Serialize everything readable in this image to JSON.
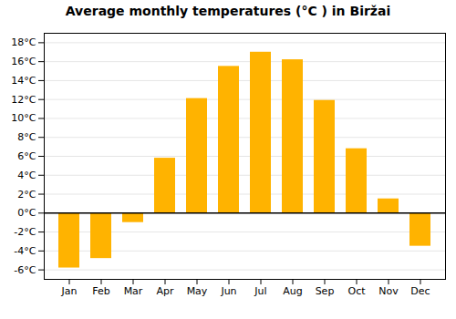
{
  "chart_data": {
    "type": "bar",
    "title": "Average monthly temperatures (°C ) in Biržai",
    "categories": [
      "Jan",
      "Feb",
      "Mar",
      "Apr",
      "May",
      "Jun",
      "Jul",
      "Aug",
      "Sep",
      "Oct",
      "Nov",
      "Dec"
    ],
    "values": [
      -5.8,
      -4.8,
      -1.0,
      5.8,
      12.1,
      15.5,
      17.0,
      16.2,
      11.9,
      6.8,
      1.5,
      -3.5
    ],
    "color": "#FFB300",
    "ylim": [
      -7,
      19
    ],
    "yticks": [
      {
        "value": -6,
        "label": "-6°C"
      },
      {
        "value": -4,
        "label": "-4°C"
      },
      {
        "value": -2,
        "label": "-2°C"
      },
      {
        "value": 0,
        "label": "0°C"
      },
      {
        "value": 2,
        "label": "2°C"
      },
      {
        "value": 4,
        "label": "4°C"
      },
      {
        "value": 6,
        "label": "6°C"
      },
      {
        "value": 8,
        "label": "8°C"
      },
      {
        "value": 10,
        "label": "10°C"
      },
      {
        "value": 12,
        "label": "12°C"
      },
      {
        "value": 14,
        "label": "14°C"
      },
      {
        "value": 16,
        "label": "16°C"
      },
      {
        "value": 18,
        "label": "18°C"
      }
    ],
    "grid": true
  }
}
